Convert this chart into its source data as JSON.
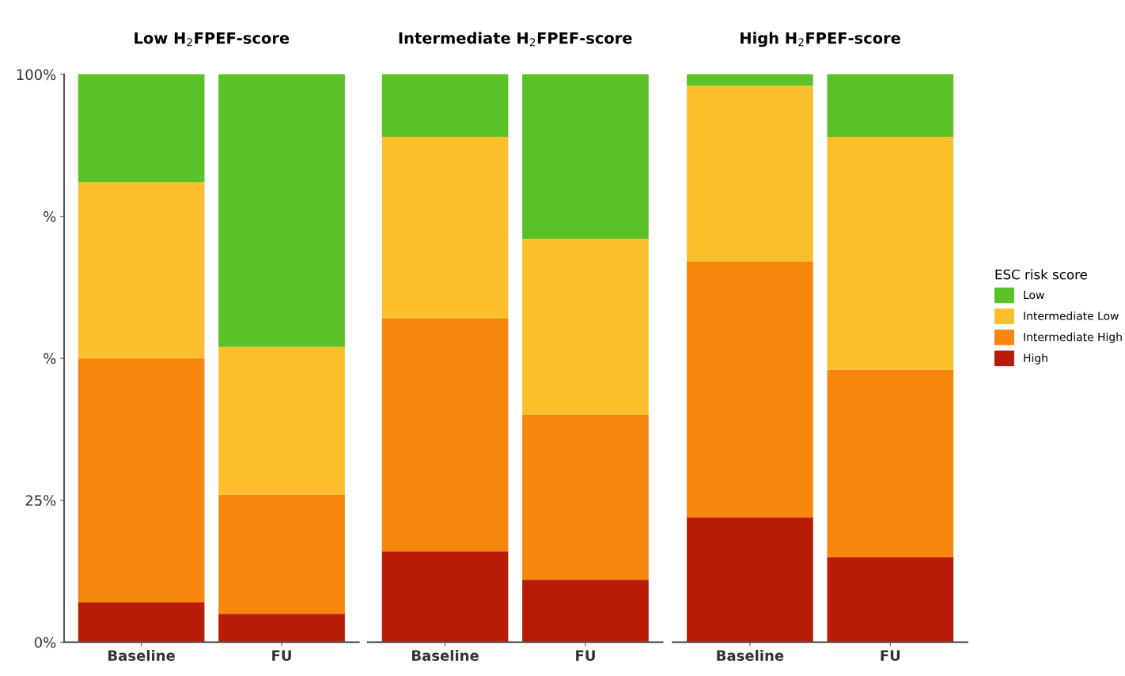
{
  "chart_data": [
    {
      "type": "bar",
      "stacked": true,
      "title": "Low H$_{2}$FPEF-score",
      "categories": [
        "Baseline",
        "FU"
      ],
      "ylim": [
        0,
        100
      ],
      "yticks": [
        {
          "value": 0,
          "label": "0%"
        },
        {
          "value": 25,
          "label": "25%"
        },
        {
          "value": 50,
          "label": "%"
        },
        {
          "value": 75,
          "label": "%"
        },
        {
          "value": 100,
          "label": "100%"
        }
      ],
      "grid": false,
      "legend": "right",
      "legend_title": "ESC risk score",
      "series": [
        {
          "name": "High",
          "color": "#b81c06",
          "values": [
            7,
            5
          ]
        },
        {
          "name": "Intermediate High",
          "color": "#f7860c",
          "values": [
            43,
            21
          ]
        },
        {
          "name": "Intermediate Low",
          "color": "#fbbf2c",
          "values": [
            31,
            26
          ]
        },
        {
          "name": "Low",
          "color": "#5ac227",
          "values": [
            19,
            48
          ]
        }
      ]
    },
    {
      "type": "bar",
      "stacked": true,
      "title": "Intermediate H$_{2}$FPEF-score",
      "categories": [
        "Baseline",
        "FU"
      ],
      "ylim": [
        0,
        100
      ],
      "tick_labels": "x",
      "grid": false,
      "series": [
        {
          "color": "#b81c06",
          "values": [
            16,
            11
          ]
        },
        {
          "color": "#f7860c",
          "values": [
            41,
            29
          ]
        },
        {
          "color": "#fbbf2c",
          "values": [
            32,
            31
          ]
        },
        {
          "color": "#5ac227",
          "values": [
            11,
            29
          ]
        }
      ]
    },
    {
      "type": "bar",
      "stacked": true,
      "title": "High H$_{2}$FPEF-score",
      "categories": [
        "Baseline",
        "FU"
      ],
      "ylim": [
        0,
        100
      ],
      "tick_labels": "x",
      "grid": false,
      "series": [
        {
          "color": "#b81c06",
          "values": [
            22,
            15
          ]
        },
        {
          "color": "#f7860c",
          "values": [
            45,
            33
          ]
        },
        {
          "color": "#fbbf2c",
          "values": [
            31,
            41
          ]
        },
        {
          "color": "#5ac227",
          "values": [
            2,
            11
          ]
        }
      ]
    }
  ]
}
